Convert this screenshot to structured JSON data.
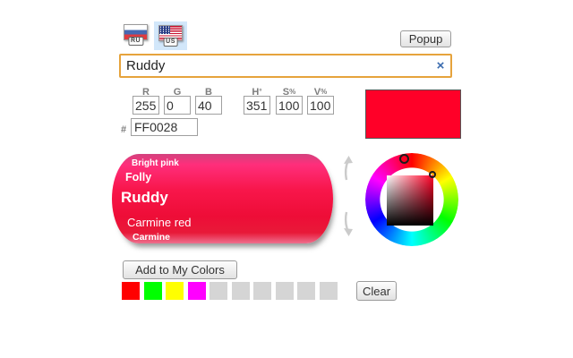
{
  "language_bar": {
    "ru": {
      "badge": "RU",
      "selected": false
    },
    "us": {
      "badge": "US",
      "selected": true
    },
    "popup_button_label": "Popup"
  },
  "search": {
    "value": "Ruddy",
    "clear_icon": "×"
  },
  "channels": {
    "fields": [
      {
        "label": "R",
        "unit": "",
        "value": "255"
      },
      {
        "label": "G",
        "unit": "",
        "value": "0"
      },
      {
        "label": "B",
        "unit": "",
        "value": "40"
      },
      {
        "label": "H",
        "unit": "°",
        "value": "351"
      },
      {
        "label": "S",
        "unit": "%",
        "value": "100"
      },
      {
        "label": "V",
        "unit": "%",
        "value": "100"
      }
    ],
    "hex_prefix": "#",
    "hex_value": "FF0028"
  },
  "current_color": {
    "hex_css": "#FF0028"
  },
  "name_drum": {
    "items": [
      {
        "label": "Bright pink",
        "selected": false
      },
      {
        "label": "Folly",
        "selected": false
      },
      {
        "label": "Ruddy",
        "selected": true
      },
      {
        "label": "Carmine red",
        "selected": false
      },
      {
        "label": "Carmine",
        "selected": false
      }
    ]
  },
  "wheel": {
    "hue_degrees": 351,
    "saturation_pct": 100,
    "value_pct": 100,
    "sv_corner_color": "#FF0026"
  },
  "my_colors": {
    "add_button_label": "Add to My Colors",
    "swatches": [
      "#FF0000",
      "#00FF00",
      "#FFFF00",
      "#FF00FF",
      null,
      null,
      null,
      null,
      null,
      null
    ],
    "empty_swatch_color": "#D5D5D5",
    "clear_button_label": "Clear"
  }
}
